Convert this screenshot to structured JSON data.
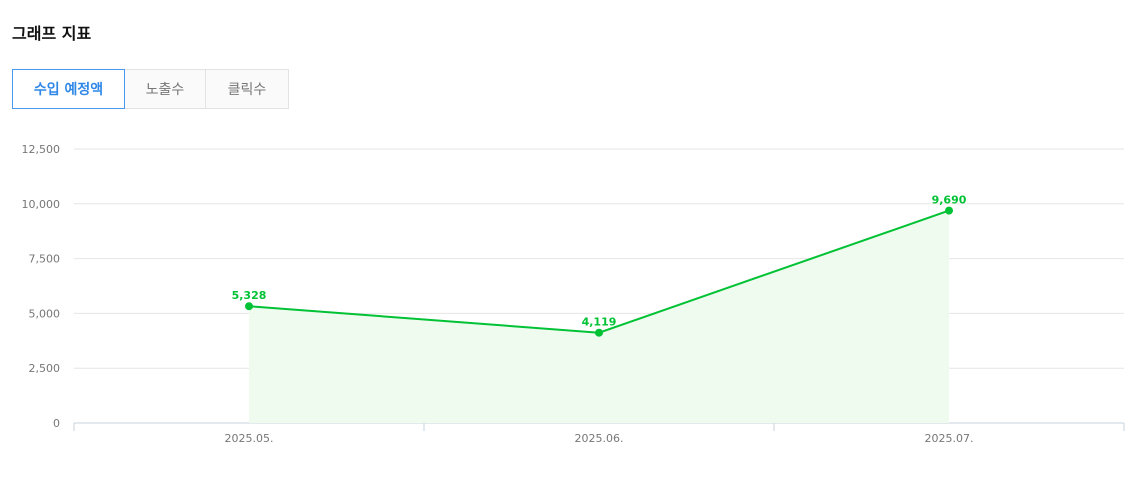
{
  "header": {
    "title": "그래프 지표"
  },
  "tabs": [
    {
      "label": "수입 예정액",
      "active": true
    },
    {
      "label": "노출수",
      "active": false
    },
    {
      "label": "클릭수",
      "active": false
    }
  ],
  "colors": {
    "accent": "#00c234",
    "area": "#effbef",
    "tab_active": "#2f88e8"
  },
  "chart_data": {
    "type": "area",
    "categories": [
      "2025.05.",
      "2025.06.",
      "2025.07."
    ],
    "series": [
      {
        "values": [
          5328,
          4119,
          9690
        ]
      }
    ],
    "value_labels": [
      "5,328",
      "4,119",
      "9,690"
    ],
    "yticks": [
      0,
      2500,
      5000,
      7500,
      10000,
      12500
    ],
    "ytick_labels": [
      "0",
      "2,500",
      "5,000",
      "7,500",
      "10,000",
      "12,500"
    ],
    "ylim": [
      0,
      12500
    ],
    "grid": true,
    "legend": "none"
  }
}
